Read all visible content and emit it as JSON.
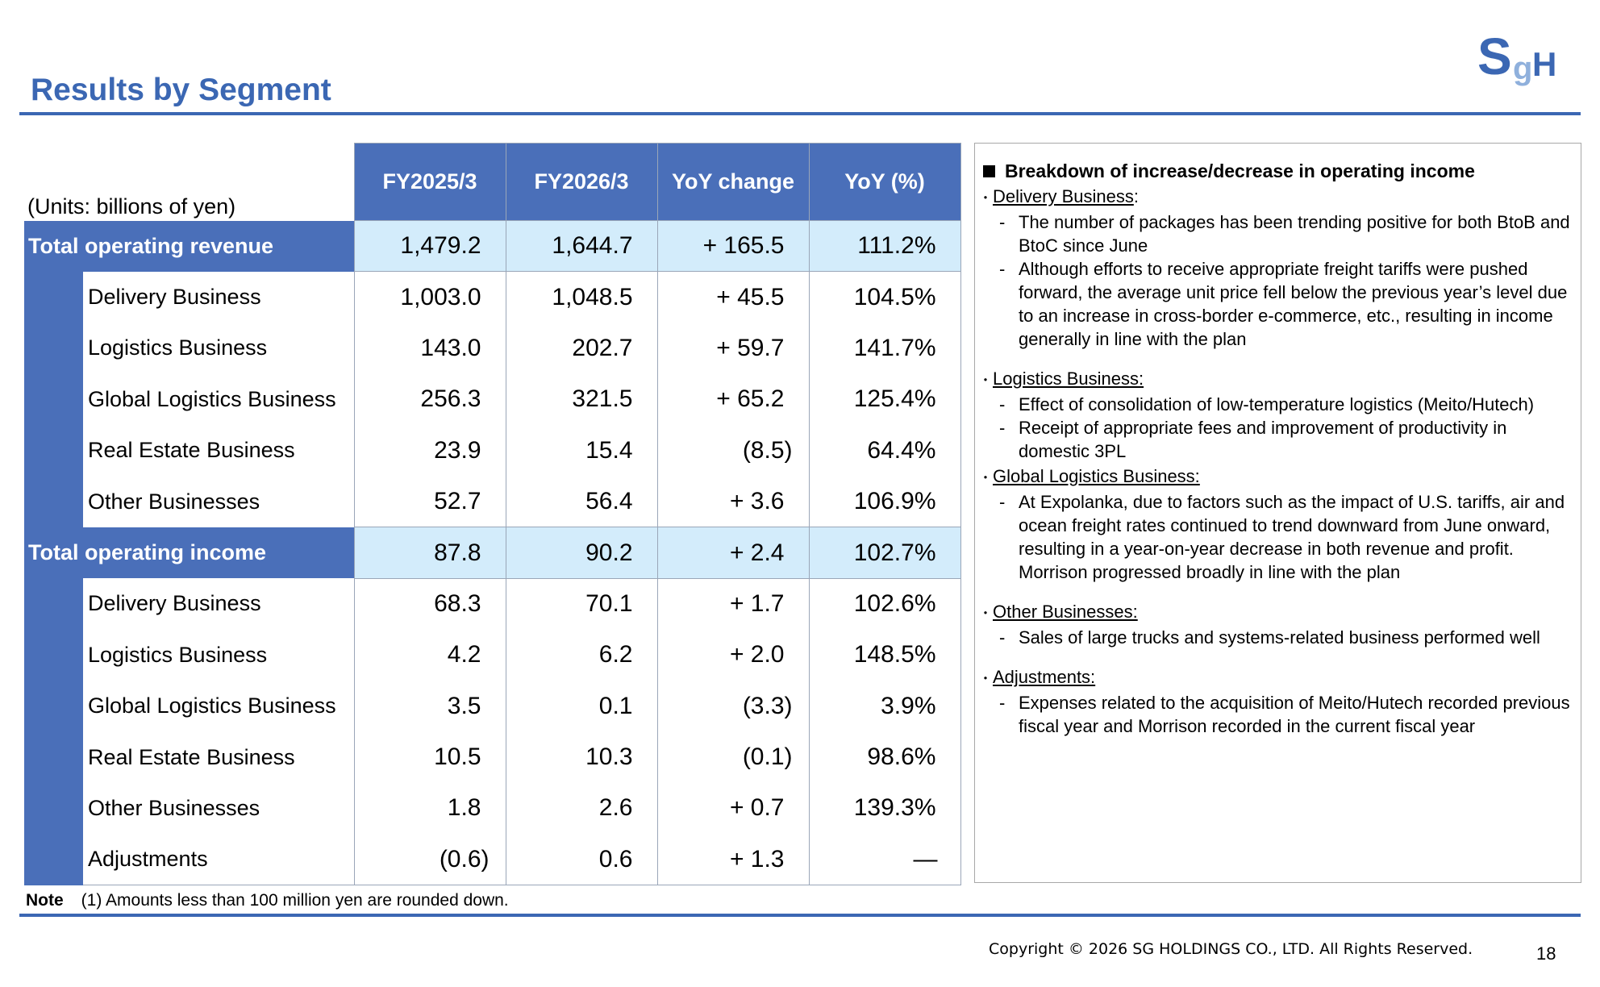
{
  "title": "Results by Segment",
  "units": "(Units: billions of yen)",
  "logo_text": "SGH",
  "headers": [
    "FY2025/3",
    "FY2026/3",
    "YoY change",
    "YoY (%)"
  ],
  "revenue": {
    "label": "Total operating revenue",
    "values": [
      "1,479.2",
      "1,644.7",
      "+ 165.5",
      "111.2%"
    ],
    "rows": [
      {
        "name": "Delivery Business",
        "values": [
          "1,003.0",
          "1,048.5",
          "+ 45.5",
          "104.5%"
        ]
      },
      {
        "name": "Logistics Business",
        "values": [
          "143.0",
          "202.7",
          "+ 59.7",
          "141.7%"
        ]
      },
      {
        "name": "Global Logistics Business",
        "values": [
          "256.3",
          "321.5",
          "+ 65.2",
          "125.4%"
        ]
      },
      {
        "name": "Real Estate Business",
        "values": [
          "23.9",
          "15.4",
          "(8.5)",
          "64.4%"
        ]
      },
      {
        "name": "Other Businesses",
        "values": [
          "52.7",
          "56.4",
          "+ 3.6",
          "106.9%"
        ]
      }
    ]
  },
  "income": {
    "label": "Total operating income",
    "values": [
      "87.8",
      "90.2",
      "+ 2.4",
      "102.7%"
    ],
    "rows": [
      {
        "name": "Delivery Business",
        "values": [
          "68.3",
          "70.1",
          "+ 1.7",
          "102.6%"
        ]
      },
      {
        "name": "Logistics Business",
        "values": [
          "4.2",
          "6.2",
          "+ 2.0",
          "148.5%"
        ]
      },
      {
        "name": "Global Logistics Business",
        "values": [
          "3.5",
          "0.1",
          "(3.3)",
          "3.9%"
        ]
      },
      {
        "name": "Real Estate Business",
        "values": [
          "10.5",
          "10.3",
          "(0.1)",
          "98.6%"
        ]
      },
      {
        "name": "Other Businesses",
        "values": [
          "1.8",
          "2.6",
          "+ 0.7",
          "139.3%"
        ]
      },
      {
        "name": "Adjustments",
        "values": [
          "(0.6)",
          "0.6",
          "+ 1.3",
          "—"
        ]
      }
    ]
  },
  "note_label": "Note",
  "note_text": "(1) Amounts less than 100 million yen are rounded down.",
  "panel": {
    "heading": "Breakdown of increase/decrease in operating income",
    "sections": [
      {
        "title": "Delivery Business",
        "suffix": ":",
        "items": [
          "The number of packages has been trending positive for both BtoB and BtoC since June",
          "Although efforts to receive appropriate freight tariffs were pushed forward, the average unit price fell below the previous year’s level due to an increase in cross-border e-commerce, etc., resulting in income generally in line with the plan"
        ]
      },
      {
        "title": "Logistics Business:",
        "suffix": "",
        "items": [
          "Effect of consolidation of low-temperature logistics (Meito/Hutech)",
          "Receipt of appropriate fees and improvement of productivity in domestic 3PL"
        ]
      },
      {
        "title": "Global Logistics Business:",
        "suffix": "",
        "items": [
          "At Expolanka, due to factors such as the impact of U.S. tariffs, air and ocean freight rates continued to trend downward from June onward, resulting in a year-on-year decrease in both revenue and profit. Morrison progressed broadly in line with the plan"
        ]
      },
      {
        "title": "Other Businesses:",
        "suffix": "",
        "items": [
          "Sales of large trucks and systems-related business performed well"
        ]
      },
      {
        "title": "Adjustments:",
        "suffix": "",
        "items": [
          "Expenses related to the acquisition of Meito/Hutech recorded previous fiscal year and Morrison recorded in the current fiscal year"
        ]
      }
    ]
  },
  "copyright": "Copyright © 2026 SG HOLDINGS CO., LTD.  All Rights Reserved.",
  "page_number": "18",
  "colors": {
    "brand_blue": "#4a6fb9",
    "title_blue": "#3b67b3",
    "highlight": "#d3ecfb"
  }
}
